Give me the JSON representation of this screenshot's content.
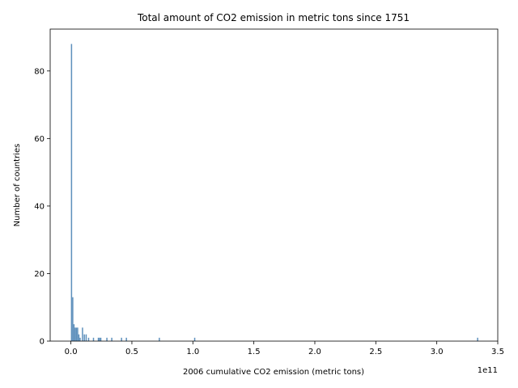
{
  "chart_data": {
    "type": "bar",
    "title": "Total amount of CO2 emission in metric tons since 1751",
    "xlabel": "2006 cumulative CO2 emission (metric tons)",
    "ylabel": "Number of countries",
    "x_offset_label": "1e11",
    "xlim": [
      -17000000000.0,
      350000000000.0
    ],
    "ylim": [
      0,
      92.4
    ],
    "x_ticks": [
      0,
      0.5,
      1.0,
      1.5,
      2.0,
      2.5,
      3.0,
      3.5
    ],
    "x_tick_labels": [
      "0.0",
      "0.5",
      "1.0",
      "1.5",
      "2.0",
      "2.5",
      "3.0",
      "3.5"
    ],
    "x_tick_scale": 100000000000.0,
    "y_ticks": [
      0,
      20,
      40,
      60,
      80
    ],
    "y_tick_labels": [
      "0",
      "20",
      "40",
      "60",
      "80"
    ],
    "grid": false,
    "bar_color": "#4c84b5",
    "bins": [
      {
        "x": 0.0,
        "width": 1000000000.0,
        "count": 88
      },
      {
        "x": 1000000000.0,
        "width": 1000000000.0,
        "count": 13
      },
      {
        "x": 2000000000.0,
        "width": 1000000000.0,
        "count": 5
      },
      {
        "x": 3000000000.0,
        "width": 1000000000.0,
        "count": 4
      },
      {
        "x": 4000000000.0,
        "width": 1000000000.0,
        "count": 4
      },
      {
        "x": 5000000000.0,
        "width": 1000000000.0,
        "count": 4
      },
      {
        "x": 6000000000.0,
        "width": 1000000000.0,
        "count": 2
      },
      {
        "x": 7000000000.0,
        "width": 1000000000.0,
        "count": 1
      },
      {
        "x": 9000000000.0,
        "width": 1000000000.0,
        "count": 4
      },
      {
        "x": 10500000000.0,
        "width": 1000000000.0,
        "count": 2
      },
      {
        "x": 12000000000.0,
        "width": 1000000000.0,
        "count": 2
      },
      {
        "x": 14000000000.0,
        "width": 1000000000.0,
        "count": 1
      },
      {
        "x": 18000000000.0,
        "width": 1000000000.0,
        "count": 1
      },
      {
        "x": 22000000000.0,
        "width": 1000000000.0,
        "count": 1
      },
      {
        "x": 23000000000.0,
        "width": 1000000000.0,
        "count": 1
      },
      {
        "x": 24000000000.0,
        "width": 1000000000.0,
        "count": 1
      },
      {
        "x": 29000000000.0,
        "width": 1000000000.0,
        "count": 1
      },
      {
        "x": 33000000000.0,
        "width": 1000000000.0,
        "count": 1
      },
      {
        "x": 41000000000.0,
        "width": 1000000000.0,
        "count": 1
      },
      {
        "x": 45000000000.0,
        "width": 1000000000.0,
        "count": 1
      },
      {
        "x": 72000000000.0,
        "width": 1000000000.0,
        "count": 1
      },
      {
        "x": 101000000000.0,
        "width": 1000000000.0,
        "count": 1
      },
      {
        "x": 333000000000.0,
        "width": 1000000000.0,
        "count": 1
      }
    ]
  }
}
